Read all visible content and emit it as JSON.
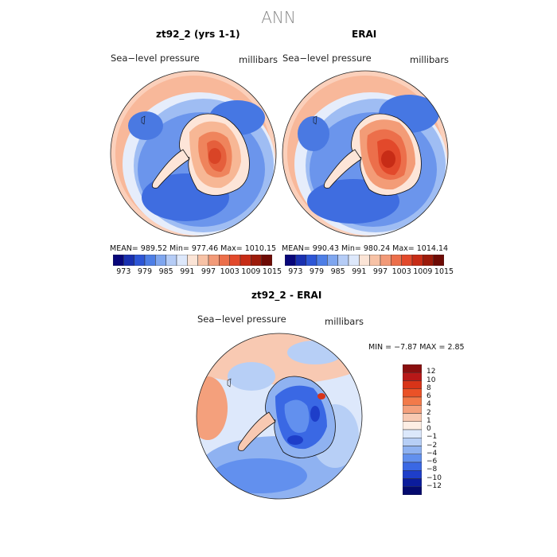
{
  "main_title": "ANN",
  "panels": [
    {
      "title": "zt92_2 (yrs 1-1)",
      "variable": "Sea−level pressure",
      "units": "millibars",
      "stats": "MEAN= 989.52   Min= 977.46   Max= 1010.15"
    },
    {
      "title": "ERAI",
      "variable": "Sea−level pressure",
      "units": "millibars",
      "stats": "MEAN= 990.43   Min= 980.24   Max= 1014.14"
    },
    {
      "title": "zt92_2 - ERAI",
      "variable": "Sea−level pressure",
      "units": "millibars",
      "stats": "MIN =   −7.87  MAX =     2.85"
    }
  ],
  "colorbar_abs": {
    "labels": [
      "973",
      "979",
      "985",
      "991",
      "997",
      "1003",
      "1009",
      "1015"
    ],
    "colors": [
      "#08067a",
      "#1930b0",
      "#2d56d6",
      "#4d7ee6",
      "#7fa6ef",
      "#b5ccf6",
      "#dde8fb",
      "#fbe4d6",
      "#f7c2a6",
      "#f29a78",
      "#ec6f4b",
      "#e2492b",
      "#c72c16",
      "#9c1a0a",
      "#6e0b05"
    ]
  },
  "colorbar_diff": {
    "labels": [
      "12",
      "10",
      "8",
      "6",
      "4",
      "2",
      "1",
      "0",
      "−1",
      "−2",
      "−4",
      "−6",
      "−8",
      "−10",
      "−12"
    ],
    "colors": [
      "#8a0f0f",
      "#b81818",
      "#d83418",
      "#ea5227",
      "#f27a4a",
      "#f4a07c",
      "#f8c9b2",
      "#fdeee4",
      "#dce8fb",
      "#b7cff6",
      "#8fb2f1",
      "#6290ee",
      "#3a68e4",
      "#1e3ec9",
      "#0b1c9c",
      "#040a6e"
    ]
  }
}
